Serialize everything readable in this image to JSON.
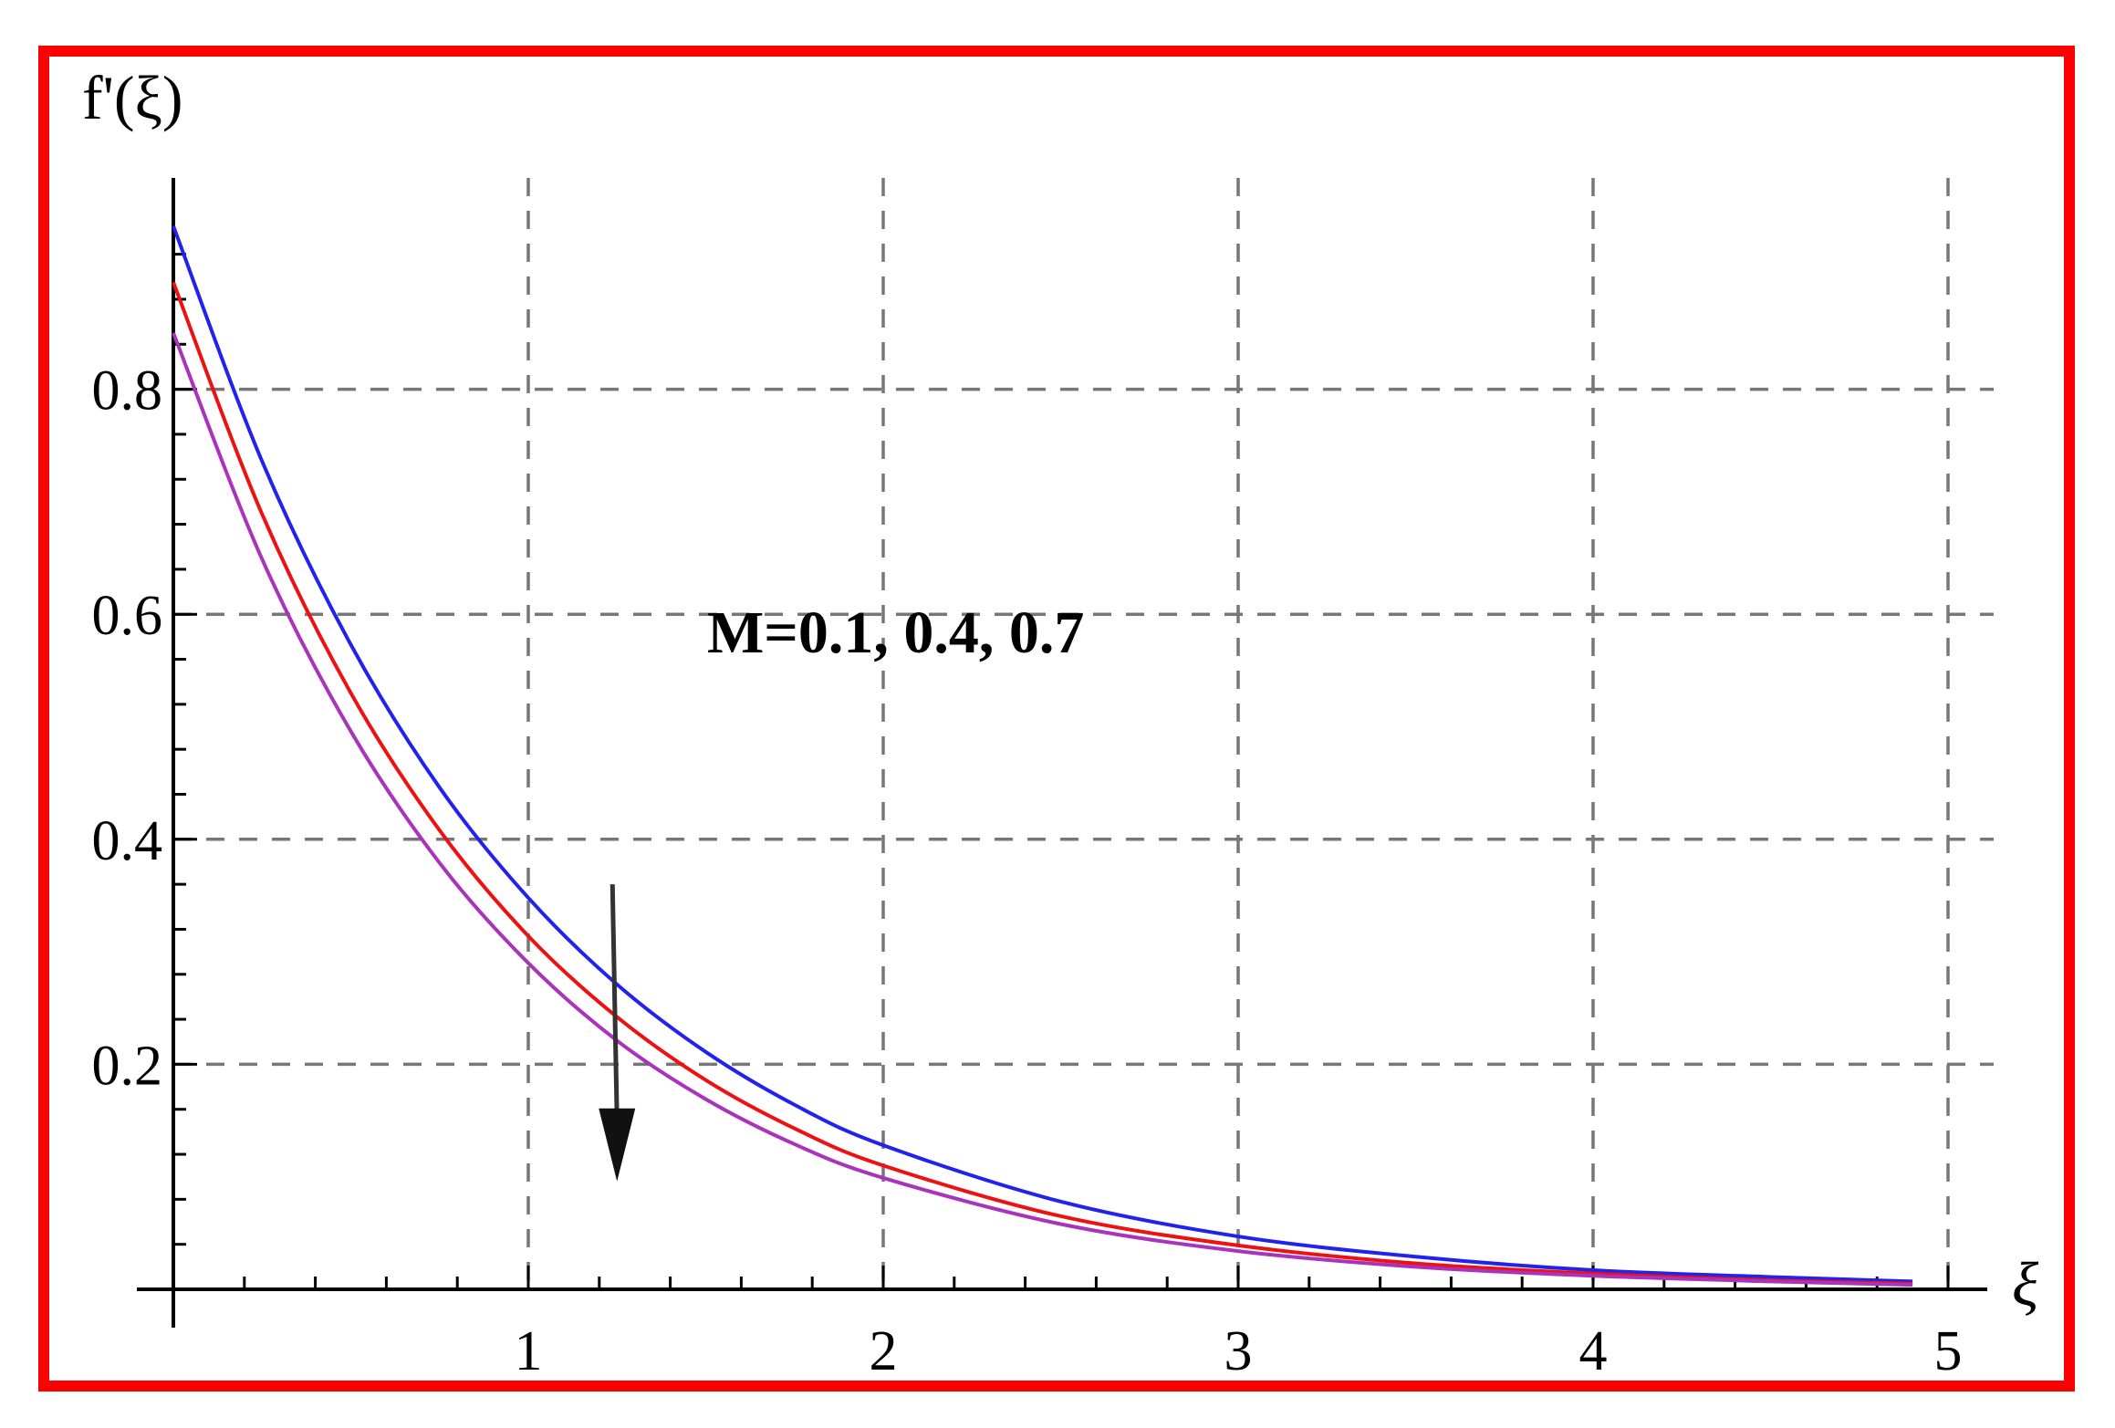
{
  "chart_data": {
    "type": "line",
    "title": "",
    "xlabel": "ξ",
    "ylabel": "f'(ξ)",
    "xlim": [
      0,
      5.1
    ],
    "ylim": [
      0,
      0.98
    ],
    "x_ticks": [
      1,
      2,
      3,
      4,
      5
    ],
    "y_ticks": [
      0.2,
      0.4,
      0.6,
      0.8
    ],
    "x_tick_labels": [
      "1",
      "2",
      "3",
      "4",
      "5"
    ],
    "y_tick_labels": [
      "0.2",
      "0.4",
      "0.6",
      "0.8"
    ],
    "grid": true,
    "annotation": "M=0.1, 0.4, 0.7",
    "arrow": {
      "x": 1.25,
      "y_from": 0.36,
      "y_to": 0.1
    },
    "x": [
      0,
      0.25,
      0.5,
      0.75,
      1,
      1.25,
      1.5,
      1.75,
      2,
      2.5,
      3,
      3.5,
      4,
      4.5,
      4.9
    ],
    "series": [
      {
        "color": "#2222ee",
        "values": [
          0.945,
          0.736,
          0.573,
          0.446,
          0.348,
          0.271,
          0.211,
          0.164,
          0.128,
          0.078,
          0.047,
          0.029,
          0.017,
          0.011,
          0.007
        ]
      },
      {
        "color": "#ee1111",
        "values": [
          0.895,
          0.689,
          0.53,
          0.408,
          0.314,
          0.242,
          0.186,
          0.143,
          0.11,
          0.065,
          0.039,
          0.023,
          0.014,
          0.008,
          0.005
        ]
      },
      {
        "color": "#aa33bb",
        "values": [
          0.85,
          0.649,
          0.496,
          0.379,
          0.29,
          0.221,
          0.169,
          0.129,
          0.099,
          0.058,
          0.034,
          0.02,
          0.012,
          0.007,
          0.004
        ]
      }
    ]
  }
}
